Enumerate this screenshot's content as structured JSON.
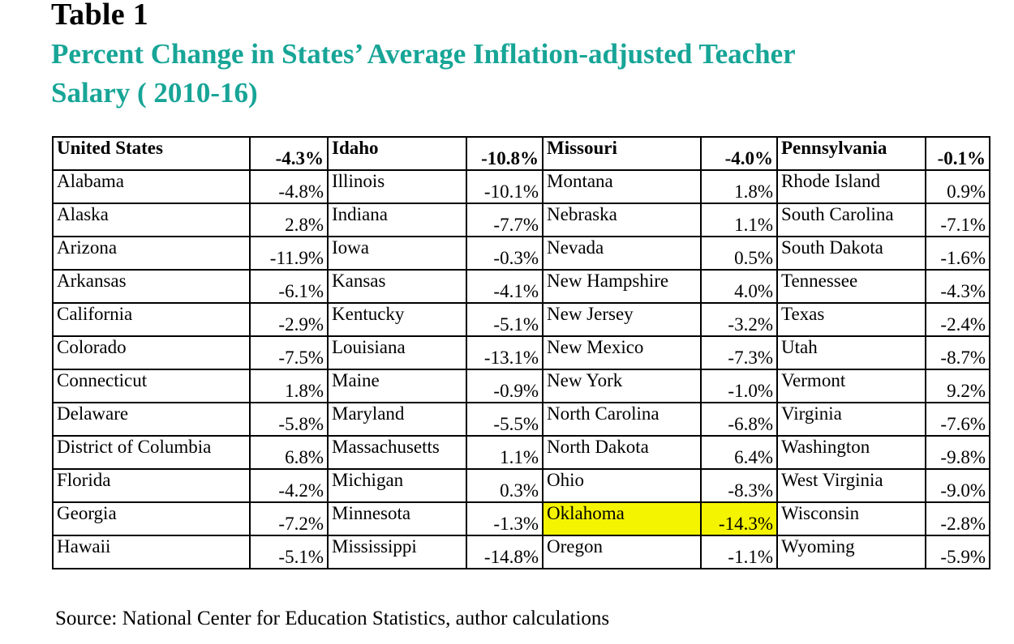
{
  "header": {
    "label": "Table 1",
    "title": "Percent Change in States’ Average Inflation-adjusted Teacher Salary ( 2010-16)"
  },
  "table": {
    "rows": [
      [
        {
          "state": "United States",
          "value": "-4.3%"
        },
        {
          "state": "Idaho",
          "value": "-10.8%"
        },
        {
          "state": "Missouri",
          "value": "-4.0%"
        },
        {
          "state": "Pennsylvania",
          "value": "-0.1%"
        }
      ],
      [
        {
          "state": "Alabama",
          "value": "-4.8%"
        },
        {
          "state": "Illinois",
          "value": "-10.1%"
        },
        {
          "state": "Montana",
          "value": "1.8%"
        },
        {
          "state": "Rhode Island",
          "value": "0.9%"
        }
      ],
      [
        {
          "state": "Alaska",
          "value": "2.8%"
        },
        {
          "state": "Indiana",
          "value": "-7.7%"
        },
        {
          "state": "Nebraska",
          "value": "1.1%"
        },
        {
          "state": "South Carolina",
          "value": "-7.1%"
        }
      ],
      [
        {
          "state": "Arizona",
          "value": "-11.9%"
        },
        {
          "state": "Iowa",
          "value": "-0.3%"
        },
        {
          "state": "Nevada",
          "value": "0.5%"
        },
        {
          "state": "South Dakota",
          "value": "-1.6%"
        }
      ],
      [
        {
          "state": "Arkansas",
          "value": "-6.1%"
        },
        {
          "state": "Kansas",
          "value": "-4.1%"
        },
        {
          "state": "New Hampshire",
          "value": "4.0%"
        },
        {
          "state": "Tennessee",
          "value": "-4.3%"
        }
      ],
      [
        {
          "state": "California",
          "value": "-2.9%"
        },
        {
          "state": "Kentucky",
          "value": "-5.1%"
        },
        {
          "state": "New Jersey",
          "value": "-3.2%"
        },
        {
          "state": "Texas",
          "value": "-2.4%"
        }
      ],
      [
        {
          "state": "Colorado",
          "value": "-7.5%"
        },
        {
          "state": "Louisiana",
          "value": "-13.1%"
        },
        {
          "state": "New Mexico",
          "value": "-7.3%"
        },
        {
          "state": "Utah",
          "value": "-8.7%"
        }
      ],
      [
        {
          "state": "Connecticut",
          "value": "1.8%"
        },
        {
          "state": "Maine",
          "value": "-0.9%"
        },
        {
          "state": "New York",
          "value": "-1.0%"
        },
        {
          "state": "Vermont",
          "value": "9.2%"
        }
      ],
      [
        {
          "state": "Delaware",
          "value": "-5.8%"
        },
        {
          "state": "Maryland",
          "value": "-5.5%"
        },
        {
          "state": "North Carolina",
          "value": "-6.8%"
        },
        {
          "state": "Virginia",
          "value": "-7.6%"
        }
      ],
      [
        {
          "state": "District of Columbia",
          "value": "6.8%"
        },
        {
          "state": "Massachusetts",
          "value": "1.1%"
        },
        {
          "state": "North Dakota",
          "value": "6.4%"
        },
        {
          "state": "Washington",
          "value": "-9.8%"
        }
      ],
      [
        {
          "state": "Florida",
          "value": "-4.2%"
        },
        {
          "state": "Michigan",
          "value": "0.3%"
        },
        {
          "state": "Ohio",
          "value": "-8.3%"
        },
        {
          "state": "West Virginia",
          "value": "-9.0%"
        }
      ],
      [
        {
          "state": "Georgia",
          "value": "-7.2%"
        },
        {
          "state": "Minnesota",
          "value": "-1.3%"
        },
        {
          "state": "Oklahoma",
          "value": "-14.3%",
          "highlight": true
        },
        {
          "state": "Wisconsin",
          "value": "-2.8%"
        }
      ],
      [
        {
          "state": "Hawaii",
          "value": "-5.1%"
        },
        {
          "state": "Mississippi",
          "value": "-14.8%"
        },
        {
          "state": "Oregon",
          "value": "-1.1%"
        },
        {
          "state": "Wyoming",
          "value": "-5.9%"
        }
      ]
    ]
  },
  "source": "Source: National Center for Education Statistics, author calculations",
  "colors": {
    "title": "#17a597",
    "highlight": "#f4f400"
  }
}
